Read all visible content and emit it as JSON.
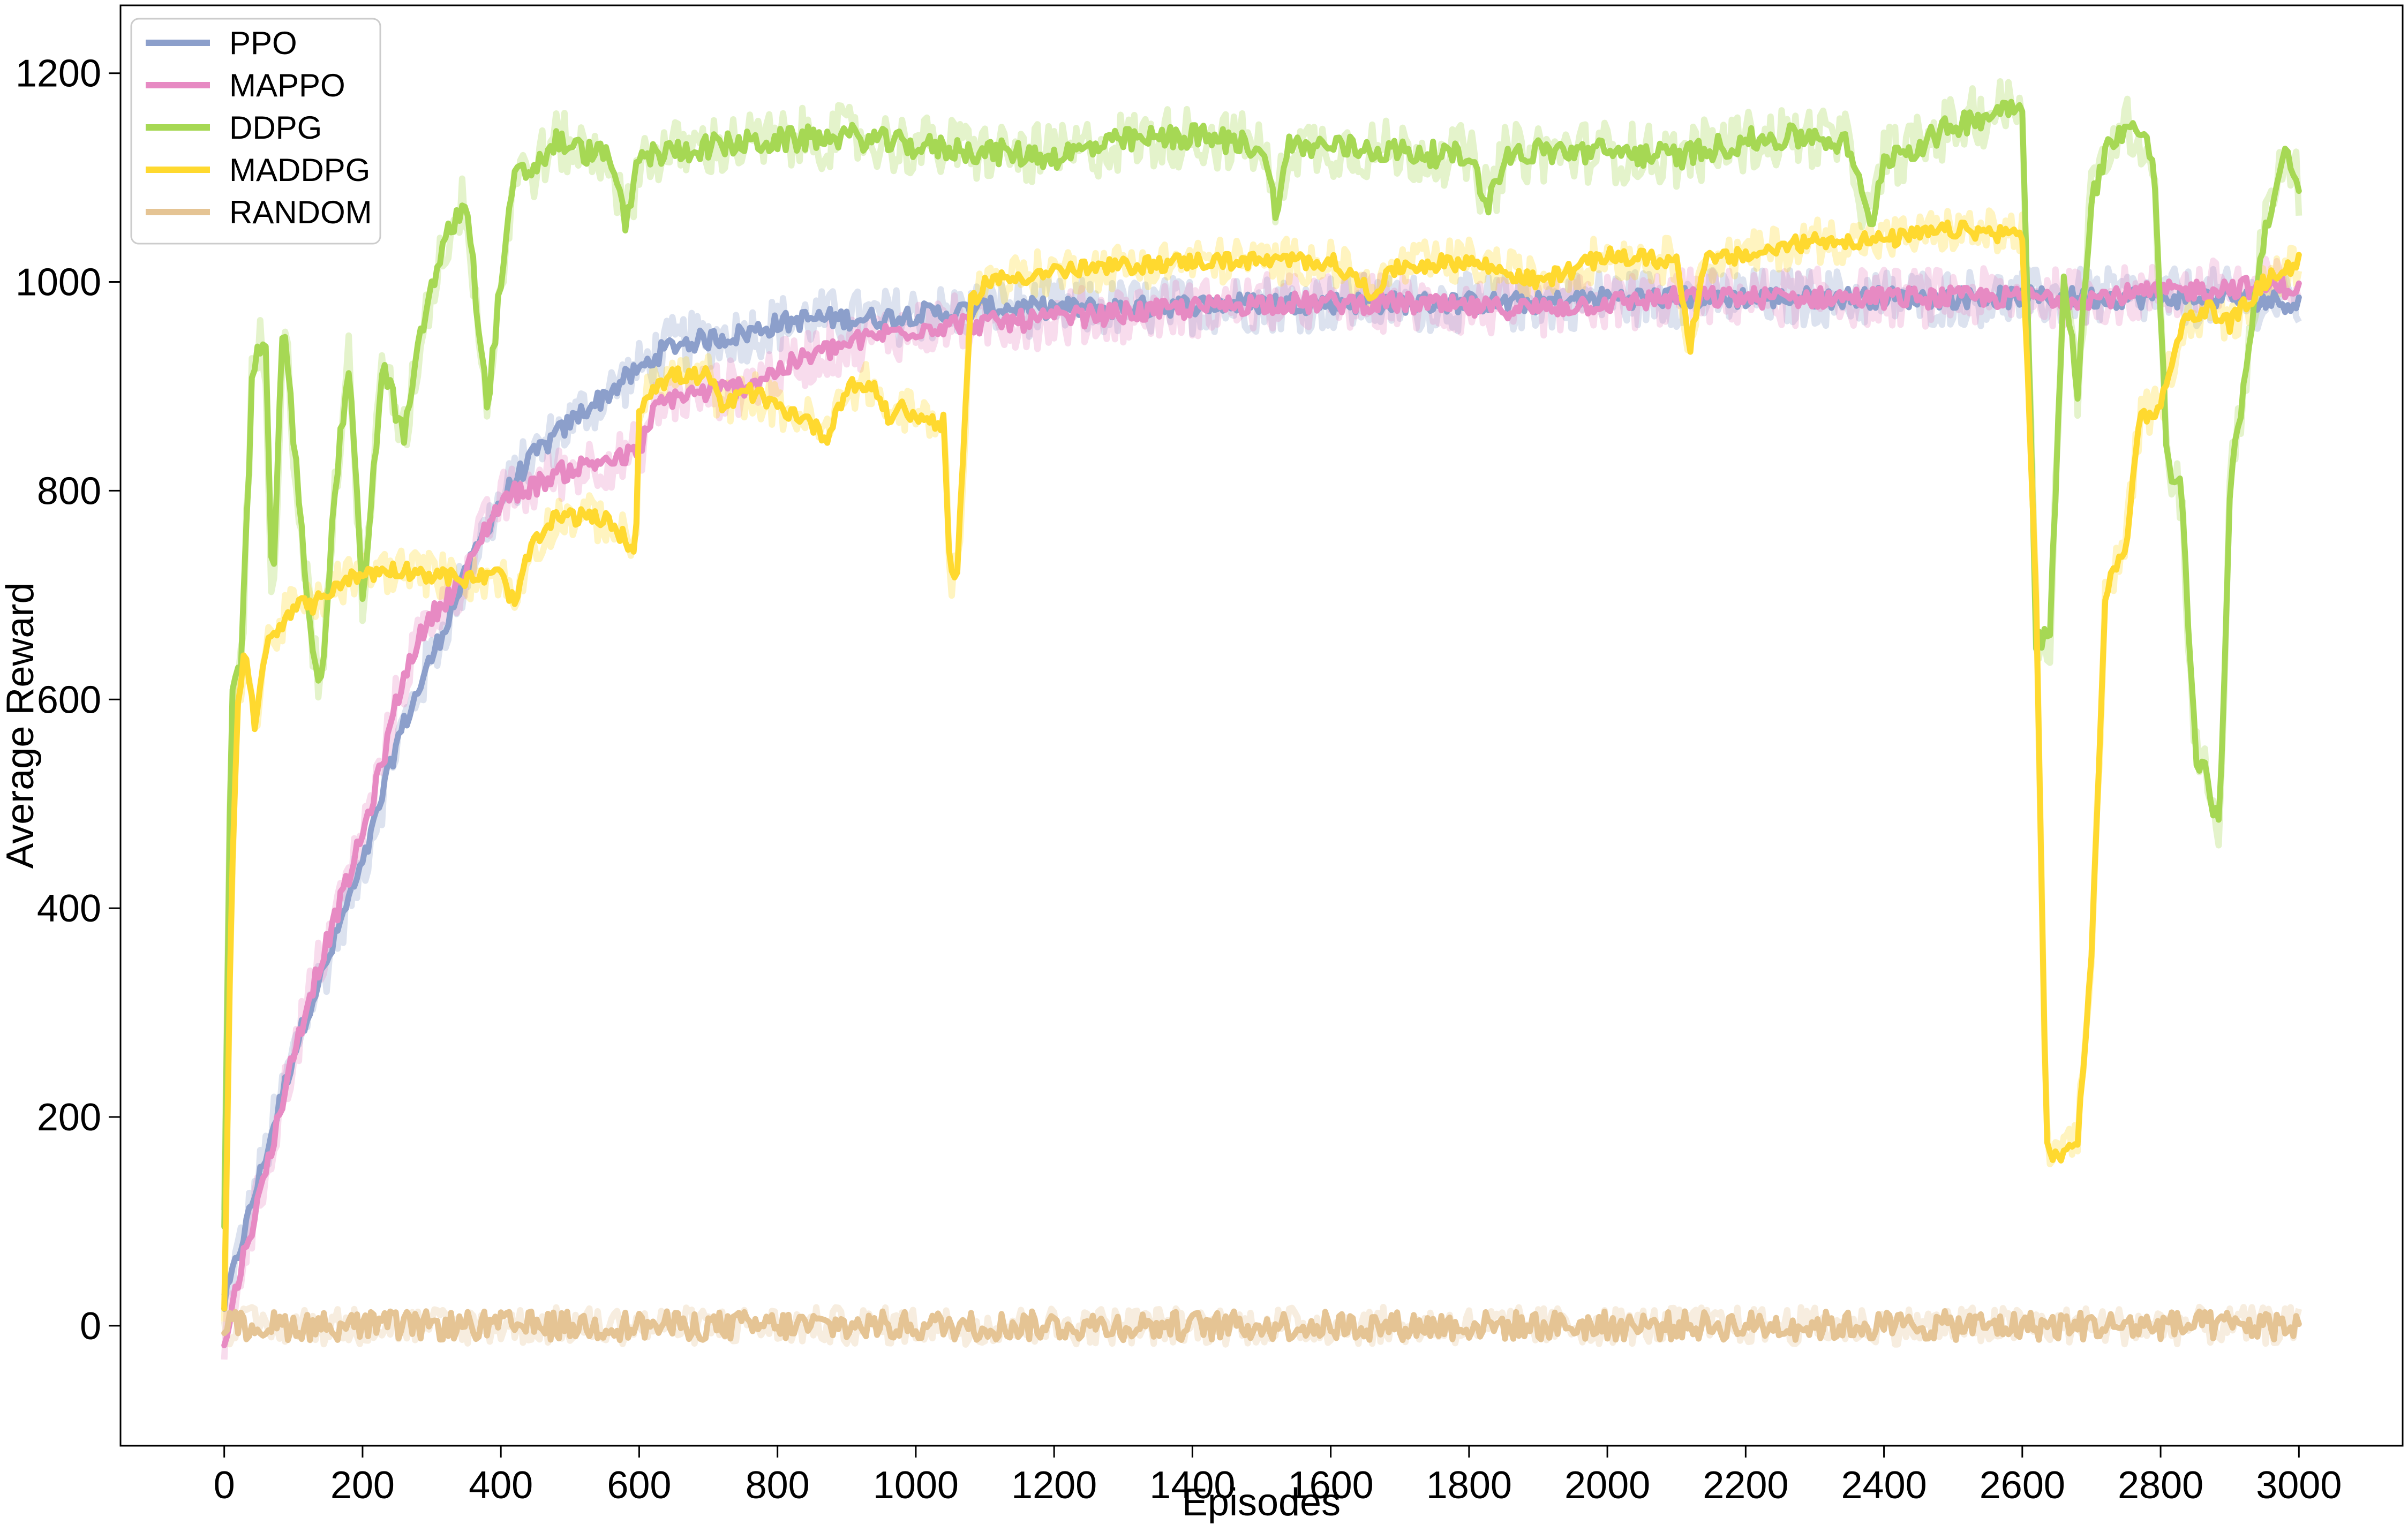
{
  "chart_data": {
    "type": "line",
    "title": "",
    "xlabel": "Episodes",
    "ylabel": "Average Reward",
    "xlim": [
      -150,
      3150
    ],
    "ylim": [
      -115,
      1265
    ],
    "xticks": [
      0,
      200,
      400,
      600,
      800,
      1000,
      1200,
      1400,
      1600,
      1800,
      2000,
      2200,
      2400,
      2600,
      2800,
      3000
    ],
    "yticks": [
      0,
      200,
      400,
      600,
      800,
      1000,
      1200
    ],
    "grid": false,
    "legend_position": "top-left",
    "shaded_band": "raw per-episode reward shown as light band behind smoothed line",
    "series": [
      {
        "name": "PPO",
        "color": "#8c9fcb",
        "points": [
          [
            0,
            20
          ],
          [
            25,
            80
          ],
          [
            50,
            140
          ],
          [
            75,
            200
          ],
          [
            100,
            260
          ],
          [
            125,
            310
          ],
          [
            150,
            350
          ],
          [
            175,
            400
          ],
          [
            200,
            440
          ],
          [
            225,
            500
          ],
          [
            250,
            560
          ],
          [
            275,
            600
          ],
          [
            300,
            640
          ],
          [
            325,
            680
          ],
          [
            350,
            720
          ],
          [
            375,
            760
          ],
          [
            400,
            790
          ],
          [
            425,
            815
          ],
          [
            450,
            835
          ],
          [
            475,
            850
          ],
          [
            500,
            865
          ],
          [
            525,
            880
          ],
          [
            550,
            890
          ],
          [
            575,
            905
          ],
          [
            600,
            915
          ],
          [
            625,
            930
          ],
          [
            650,
            940
          ],
          [
            700,
            945
          ],
          [
            750,
            950
          ],
          [
            800,
            960
          ],
          [
            850,
            965
          ],
          [
            900,
            965
          ],
          [
            950,
            965
          ],
          [
            1000,
            970
          ],
          [
            1050,
            970
          ],
          [
            1100,
            975
          ],
          [
            1200,
            975
          ],
          [
            1300,
            975
          ],
          [
            1400,
            978
          ],
          [
            1500,
            980
          ],
          [
            1600,
            980
          ],
          [
            1700,
            980
          ],
          [
            1800,
            980
          ],
          [
            1900,
            980
          ],
          [
            2000,
            985
          ],
          [
            2100,
            985
          ],
          [
            2200,
            985
          ],
          [
            2300,
            985
          ],
          [
            2400,
            985
          ],
          [
            2500,
            985
          ],
          [
            2600,
            985
          ],
          [
            2700,
            985
          ],
          [
            2800,
            985
          ],
          [
            2900,
            985
          ],
          [
            3000,
            980
          ]
        ]
      },
      {
        "name": "MAPPO",
        "color": "#e78ac3",
        "points": [
          [
            0,
            -20
          ],
          [
            25,
            60
          ],
          [
            50,
            120
          ],
          [
            75,
            190
          ],
          [
            100,
            260
          ],
          [
            125,
            320
          ],
          [
            150,
            370
          ],
          [
            175,
            420
          ],
          [
            200,
            470
          ],
          [
            225,
            530
          ],
          [
            250,
            600
          ],
          [
            275,
            650
          ],
          [
            300,
            680
          ],
          [
            325,
            700
          ],
          [
            350,
            720
          ],
          [
            375,
            760
          ],
          [
            400,
            790
          ],
          [
            425,
            800
          ],
          [
            450,
            805
          ],
          [
            475,
            815
          ],
          [
            500,
            820
          ],
          [
            525,
            825
          ],
          [
            550,
            830
          ],
          [
            575,
            830
          ],
          [
            600,
            840
          ],
          [
            625,
            880
          ],
          [
            650,
            890
          ],
          [
            700,
            895
          ],
          [
            750,
            900
          ],
          [
            800,
            915
          ],
          [
            850,
            930
          ],
          [
            900,
            940
          ],
          [
            950,
            950
          ],
          [
            1000,
            955
          ],
          [
            1050,
            960
          ],
          [
            1100,
            960
          ],
          [
            1200,
            965
          ],
          [
            1300,
            970
          ],
          [
            1400,
            975
          ],
          [
            1500,
            980
          ],
          [
            1600,
            980
          ],
          [
            1700,
            980
          ],
          [
            1800,
            975
          ],
          [
            1900,
            975
          ],
          [
            2000,
            980
          ],
          [
            2100,
            985
          ],
          [
            2200,
            985
          ],
          [
            2300,
            985
          ],
          [
            2400,
            985
          ],
          [
            2500,
            985
          ],
          [
            2600,
            985
          ],
          [
            2700,
            985
          ],
          [
            2800,
            990
          ],
          [
            2900,
            995
          ],
          [
            3000,
            995
          ]
        ]
      },
      {
        "name": "DDPG",
        "color": "#a6d854",
        "points": [
          [
            0,
            85
          ],
          [
            10,
            600
          ],
          [
            25,
            640
          ],
          [
            40,
            900
          ],
          [
            50,
            940
          ],
          [
            60,
            930
          ],
          [
            70,
            680
          ],
          [
            85,
            975
          ],
          [
            100,
            850
          ],
          [
            125,
            670
          ],
          [
            140,
            610
          ],
          [
            160,
            800
          ],
          [
            180,
            920
          ],
          [
            200,
            700
          ],
          [
            230,
            920
          ],
          [
            260,
            850
          ],
          [
            290,
            970
          ],
          [
            320,
            1040
          ],
          [
            350,
            1080
          ],
          [
            380,
            880
          ],
          [
            400,
            1000
          ],
          [
            420,
            1100
          ],
          [
            450,
            1110
          ],
          [
            480,
            1135
          ],
          [
            520,
            1125
          ],
          [
            560,
            1120
          ],
          [
            580,
            1050
          ],
          [
            600,
            1120
          ],
          [
            650,
            1125
          ],
          [
            700,
            1130
          ],
          [
            800,
            1135
          ],
          [
            900,
            1140
          ],
          [
            1000,
            1130
          ],
          [
            1100,
            1125
          ],
          [
            1200,
            1120
          ],
          [
            1300,
            1135
          ],
          [
            1400,
            1140
          ],
          [
            1500,
            1130
          ],
          [
            1520,
            1070
          ],
          [
            1540,
            1130
          ],
          [
            1600,
            1130
          ],
          [
            1700,
            1125
          ],
          [
            1800,
            1120
          ],
          [
            1830,
            1075
          ],
          [
            1850,
            1120
          ],
          [
            1900,
            1125
          ],
          [
            2000,
            1125
          ],
          [
            2100,
            1120
          ],
          [
            2200,
            1135
          ],
          [
            2300,
            1140
          ],
          [
            2350,
            1130
          ],
          [
            2380,
            1050
          ],
          [
            2400,
            1120
          ],
          [
            2450,
            1130
          ],
          [
            2500,
            1150
          ],
          [
            2550,
            1160
          ],
          [
            2600,
            1175
          ],
          [
            2620,
            660
          ],
          [
            2640,
            660
          ],
          [
            2660,
            1000
          ],
          [
            2680,
            900
          ],
          [
            2700,
            1080
          ],
          [
            2730,
            1140
          ],
          [
            2760,
            1150
          ],
          [
            2790,
            1120
          ],
          [
            2810,
            820
          ],
          [
            2830,
            800
          ],
          [
            2850,
            550
          ],
          [
            2870,
            520
          ],
          [
            2885,
            470
          ],
          [
            2900,
            800
          ],
          [
            2920,
            900
          ],
          [
            2950,
            1050
          ],
          [
            2980,
            1120
          ],
          [
            3000,
            1090
          ]
        ]
      },
      {
        "name": "MADDPG",
        "color": "#ffd92f",
        "points": [
          [
            0,
            10
          ],
          [
            10,
            400
          ],
          [
            20,
            600
          ],
          [
            30,
            650
          ],
          [
            45,
            570
          ],
          [
            60,
            650
          ],
          [
            80,
            670
          ],
          [
            100,
            690
          ],
          [
            130,
            690
          ],
          [
            160,
            710
          ],
          [
            200,
            720
          ],
          [
            250,
            725
          ],
          [
            300,
            720
          ],
          [
            350,
            715
          ],
          [
            400,
            720
          ],
          [
            420,
            690
          ],
          [
            440,
            740
          ],
          [
            480,
            775
          ],
          [
            520,
            775
          ],
          [
            560,
            770
          ],
          [
            595,
            740
          ],
          [
            600,
            880
          ],
          [
            620,
            900
          ],
          [
            650,
            910
          ],
          [
            700,
            910
          ],
          [
            720,
            880
          ],
          [
            760,
            895
          ],
          [
            800,
            880
          ],
          [
            840,
            870
          ],
          [
            870,
            850
          ],
          [
            900,
            900
          ],
          [
            940,
            900
          ],
          [
            960,
            870
          ],
          [
            980,
            880
          ],
          [
            1000,
            870
          ],
          [
            1040,
            865
          ],
          [
            1050,
            720
          ],
          [
            1060,
            720
          ],
          [
            1080,
            980
          ],
          [
            1100,
            1000
          ],
          [
            1200,
            1010
          ],
          [
            1300,
            1015
          ],
          [
            1400,
            1020
          ],
          [
            1500,
            1020
          ],
          [
            1600,
            1020
          ],
          [
            1660,
            990
          ],
          [
            1700,
            1015
          ],
          [
            1800,
            1020
          ],
          [
            1900,
            1000
          ],
          [
            2000,
            1025
          ],
          [
            2100,
            1020
          ],
          [
            2120,
            940
          ],
          [
            2140,
            1020
          ],
          [
            2200,
            1025
          ],
          [
            2300,
            1040
          ],
          [
            2400,
            1040
          ],
          [
            2500,
            1050
          ],
          [
            2600,
            1045
          ],
          [
            2620,
            700
          ],
          [
            2635,
            170
          ],
          [
            2660,
            160
          ],
          [
            2680,
            180
          ],
          [
            2700,
            350
          ],
          [
            2720,
            700
          ],
          [
            2750,
            750
          ],
          [
            2770,
            870
          ],
          [
            2800,
            880
          ],
          [
            2830,
            960
          ],
          [
            2870,
            975
          ],
          [
            2900,
            960
          ],
          [
            2950,
            1000
          ],
          [
            3000,
            1020
          ]
        ]
      },
      {
        "name": "RANDOM",
        "color": "#e5c494",
        "points": [
          [
            0,
            0
          ],
          [
            100,
            0
          ],
          [
            200,
            0
          ],
          [
            300,
            0
          ],
          [
            400,
            0
          ],
          [
            500,
            0
          ],
          [
            600,
            0
          ],
          [
            700,
            0
          ],
          [
            800,
            0
          ],
          [
            900,
            0
          ],
          [
            1000,
            0
          ],
          [
            1100,
            0
          ],
          [
            1200,
            0
          ],
          [
            1300,
            0
          ],
          [
            1400,
            0
          ],
          [
            1500,
            0
          ],
          [
            1600,
            0
          ],
          [
            1700,
            0
          ],
          [
            1800,
            0
          ],
          [
            1900,
            0
          ],
          [
            2000,
            0
          ],
          [
            2100,
            0
          ],
          [
            2200,
            0
          ],
          [
            2300,
            0
          ],
          [
            2400,
            0
          ],
          [
            2500,
            0
          ],
          [
            2600,
            0
          ],
          [
            2700,
            0
          ],
          [
            2800,
            0
          ],
          [
            2900,
            0
          ],
          [
            3000,
            0
          ]
        ]
      }
    ]
  }
}
